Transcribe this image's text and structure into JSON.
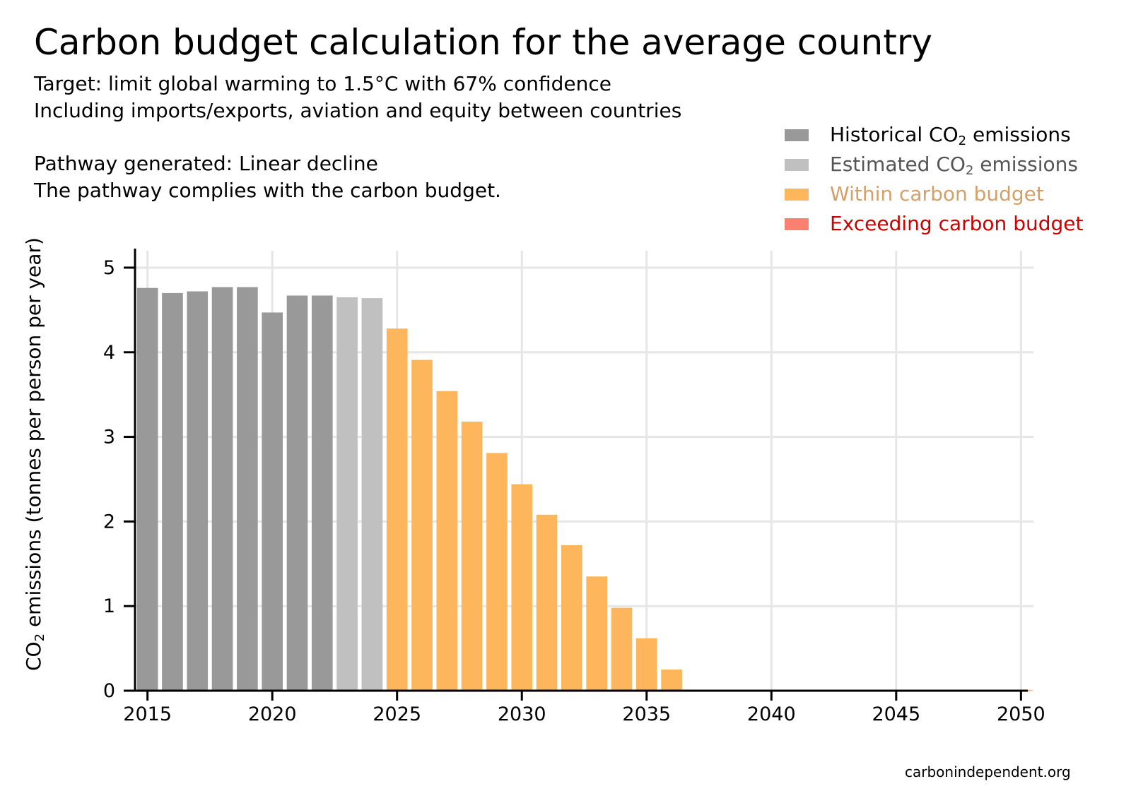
{
  "header": {
    "title": "Carbon budget calculation for the average country",
    "lines": [
      "Target: limit global warming to 1.5°C with 67% confidence",
      "Including imports/exports, aviation and equity between countries",
      "Pathway generated: Linear decline",
      "The pathway complies with the carbon budget."
    ]
  },
  "legend": [
    {
      "label_pre": "Historical CO",
      "sub": "2",
      "label_post": " emissions",
      "swatch": "#999999",
      "text_color": "#000000"
    },
    {
      "label_pre": "Estimated CO",
      "sub": "2",
      "label_post": " emissions",
      "swatch": "#c0c0c0",
      "text_color": "#555555"
    },
    {
      "label_pre": "Within carbon budget",
      "sub": "",
      "label_post": "",
      "swatch": "#fdb65c",
      "text_color": "#d4a06a"
    },
    {
      "label_pre": "Exceeding carbon budget",
      "sub": "",
      "label_post": "",
      "swatch": "#fb8072",
      "text_color": "#cc0000"
    }
  ],
  "source": "carbonindependent.org",
  "chart_data": {
    "type": "bar",
    "title": "Carbon budget calculation for the average country",
    "ylabel_pre": "CO",
    "ylabel_sub": "2",
    "ylabel_post": " emissions (tonnes per person per year)",
    "xlim": [
      2014.5,
      2050.5
    ],
    "ylim": [
      0,
      5.2
    ],
    "x_ticks": [
      2015,
      2020,
      2025,
      2030,
      2035,
      2040,
      2045,
      2050
    ],
    "y_ticks": [
      0,
      1,
      2,
      3,
      4,
      5
    ],
    "grid": true,
    "legend_position": "top-right",
    "colors": {
      "historical": "#999999",
      "estimated": "#c0c0c0",
      "within": "#fdb65c",
      "exceeding": "#fb8072"
    },
    "series": [
      {
        "name": "Historical CO2 emissions",
        "key": "historical",
        "x": [
          2015,
          2016,
          2017,
          2018,
          2019,
          2020,
          2021,
          2022
        ],
        "values": [
          4.76,
          4.7,
          4.72,
          4.77,
          4.77,
          4.47,
          4.67,
          4.67
        ]
      },
      {
        "name": "Estimated CO2 emissions",
        "key": "estimated",
        "x": [
          2023,
          2024
        ],
        "values": [
          4.65,
          4.64
        ]
      },
      {
        "name": "Within carbon budget",
        "key": "within",
        "x": [
          2025,
          2026,
          2027,
          2028,
          2029,
          2030,
          2031,
          2032,
          2033,
          2034,
          2035,
          2036,
          2037,
          2038,
          2039,
          2040,
          2041,
          2042,
          2043,
          2044,
          2045,
          2046,
          2047,
          2048,
          2049,
          2050
        ],
        "values": [
          4.28,
          3.91,
          3.54,
          3.18,
          2.81,
          2.44,
          2.08,
          1.72,
          1.35,
          0.98,
          0.62,
          0.25,
          0,
          0,
          0,
          0,
          0,
          0,
          0,
          0,
          0,
          0,
          0,
          0,
          0,
          0.01
        ]
      },
      {
        "name": "Exceeding carbon budget",
        "key": "exceeding",
        "x": [],
        "values": []
      }
    ]
  }
}
